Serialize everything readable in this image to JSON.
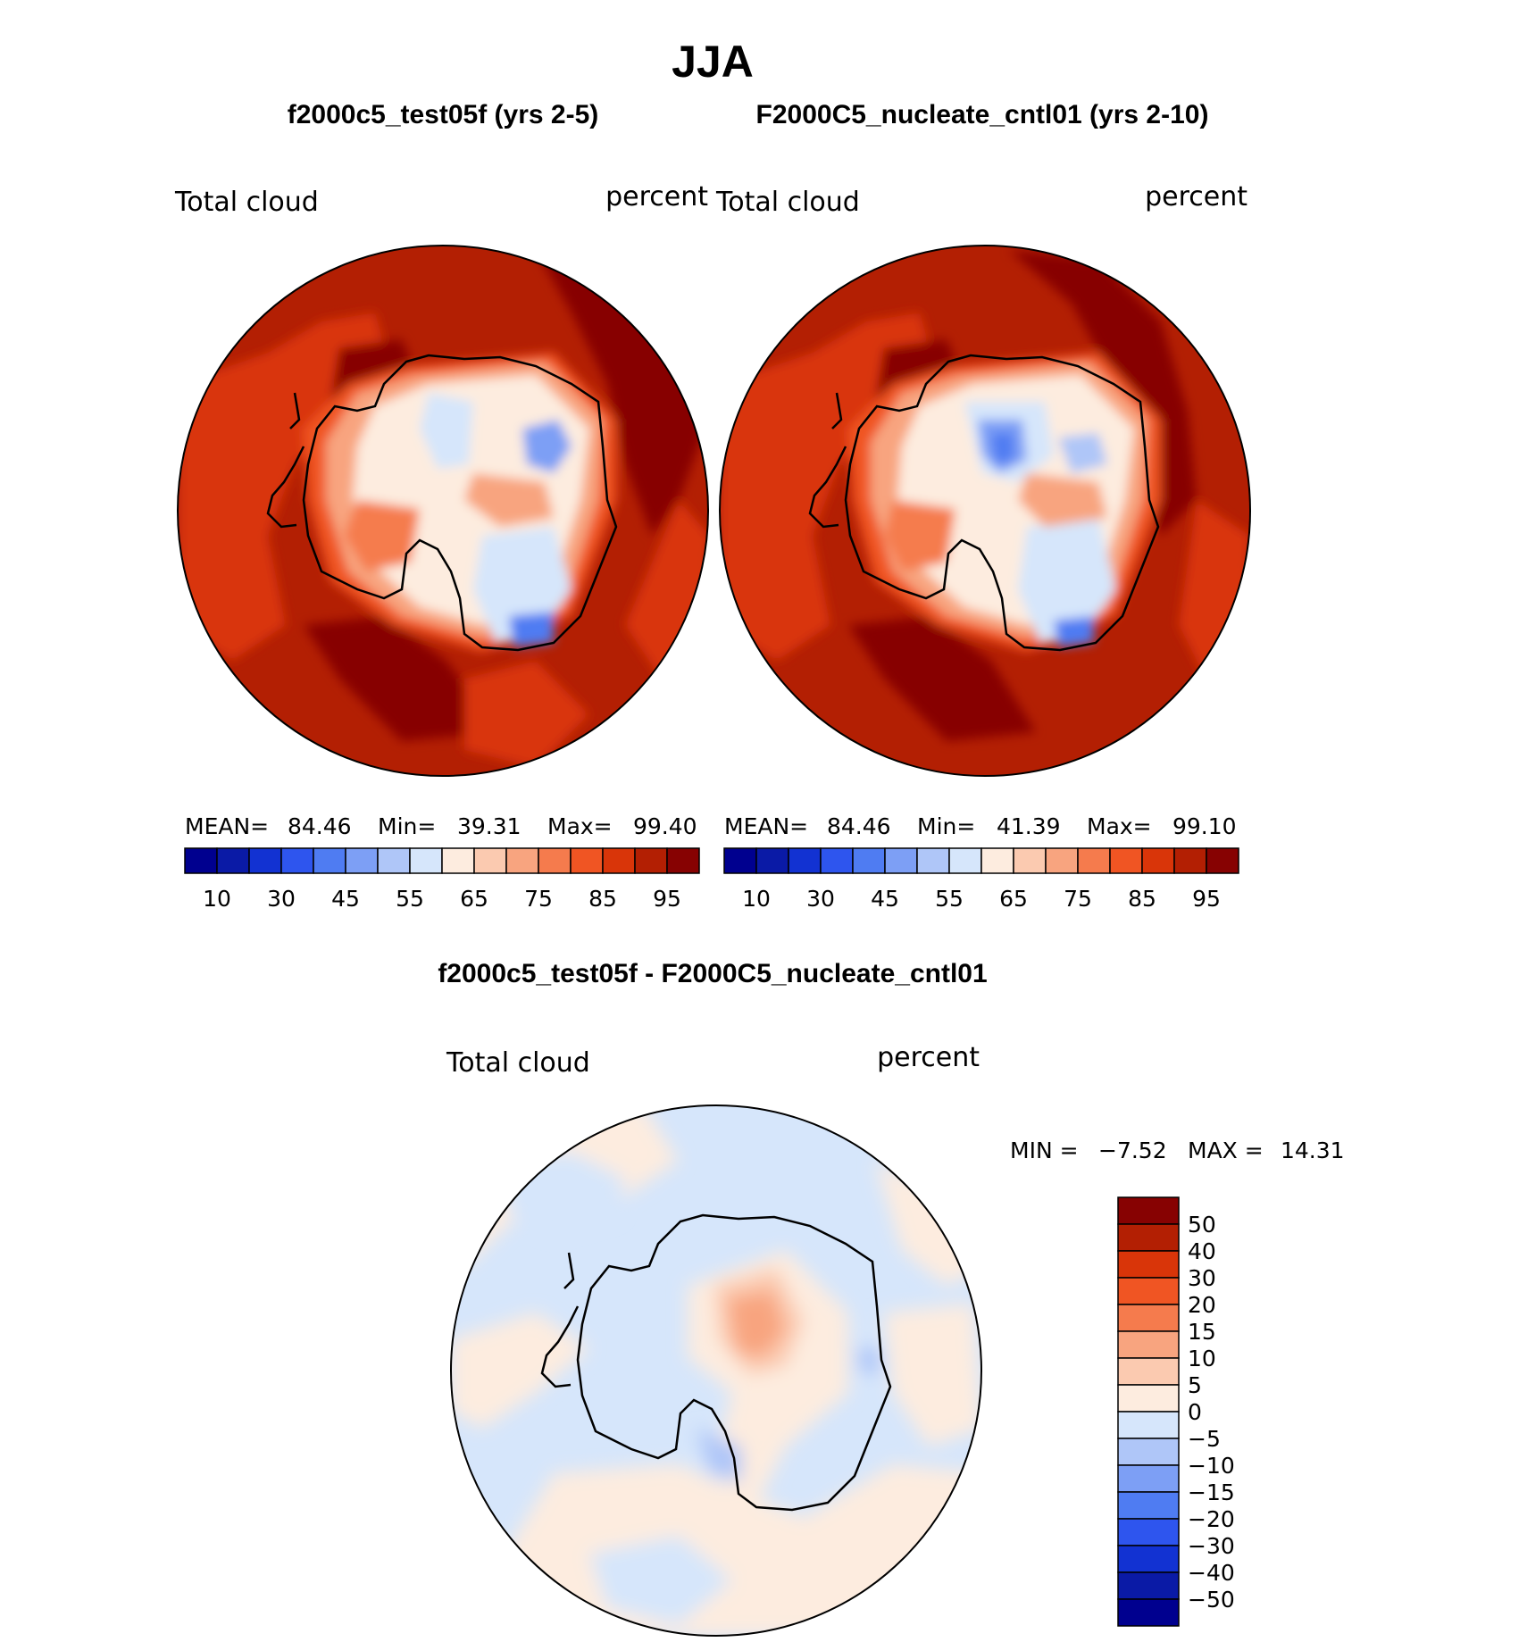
{
  "figure": {
    "title": "JJA"
  },
  "panels": [
    {
      "id": "test",
      "title": "f2000c5_test05f (yrs 2-5)",
      "variable_label": "Total cloud",
      "units_label": "percent",
      "stats": {
        "mean_label": "MEAN=",
        "mean": "84.46",
        "min_label": "Min=",
        "min": "39.31",
        "max_label": "Max=",
        "max": "99.40"
      },
      "colorbar_ticks": [
        "10",
        "30",
        "45",
        "55",
        "65",
        "75",
        "85",
        "95"
      ]
    },
    {
      "id": "cntl",
      "title": "F2000C5_nucleate_cntl01 (yrs 2-10)",
      "variable_label": "Total cloud",
      "units_label": "percent",
      "stats": {
        "mean_label": "MEAN=",
        "mean": "84.46",
        "min_label": "Min=",
        "min": "41.39",
        "max_label": "Max=",
        "max": "99.10"
      },
      "colorbar_ticks": [
        "10",
        "30",
        "45",
        "55",
        "65",
        "75",
        "85",
        "95"
      ]
    }
  ],
  "diff_panel": {
    "title": "f2000c5_test05f - F2000C5_nucleate_cntl01",
    "variable_label": "Total cloud",
    "units_label": "percent",
    "min_label": "MIN =",
    "min": "−7.52",
    "max_label": "MAX =",
    "max": "14.31",
    "colorbar_labels": [
      "50",
      "40",
      "30",
      "20",
      "15",
      "10",
      "5",
      "0",
      "−5",
      "−10",
      "−15",
      "−20",
      "−30",
      "−40",
      "−50"
    ]
  },
  "colors": {
    "abs_scale": [
      "#00008f",
      "#0a1aa6",
      "#1232d2",
      "#2e55ee",
      "#4f7cf2",
      "#7d9ff5",
      "#afc6f8",
      "#d6e6fb",
      "#fdecdf",
      "#fbcab0",
      "#f8a47f",
      "#f57b4d",
      "#f05523",
      "#d93509",
      "#b31f03",
      "#870202"
    ],
    "diff_scale": [
      "#870202",
      "#b31f03",
      "#d93509",
      "#f05523",
      "#f57b4d",
      "#f8a47f",
      "#fbcab0",
      "#fdecdf",
      "#d6e6fb",
      "#afc6f8",
      "#7d9ff5",
      "#4f7cf2",
      "#2e55ee",
      "#1232d2",
      "#0a1aa6",
      "#00008f"
    ]
  }
}
